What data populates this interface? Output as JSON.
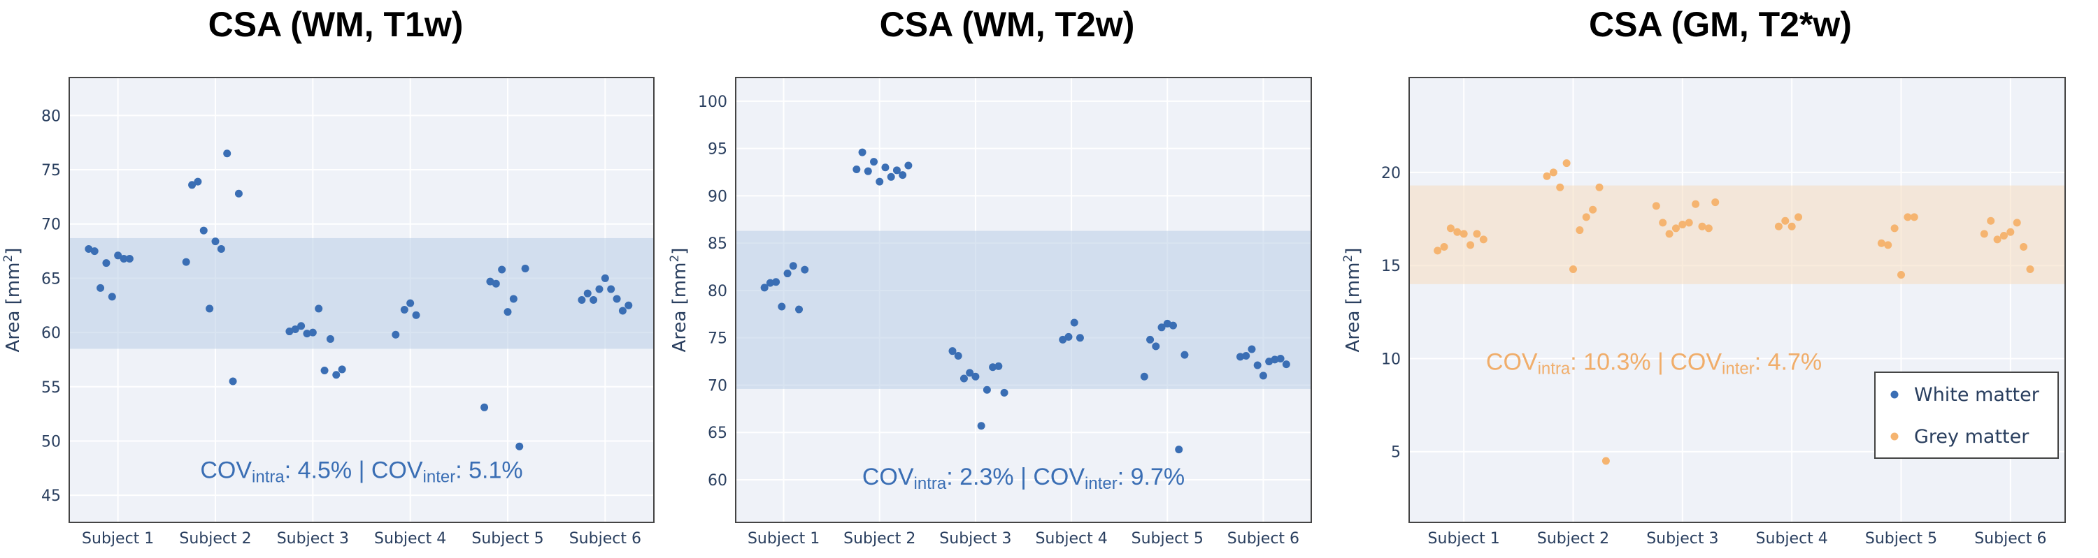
{
  "chart_data": [
    {
      "type": "scatter",
      "title": "CSA (WM, T1w)",
      "ylabel": "Area [mm²]",
      "categories": [
        "Subject 1",
        "Subject 2",
        "Subject 3",
        "Subject 4",
        "Subject 5",
        "Subject 6"
      ],
      "ylim": [
        42.5,
        83.5
      ],
      "yticks": [
        45,
        50,
        55,
        60,
        65,
        70,
        75,
        80
      ],
      "band": [
        58.5,
        68.7
      ],
      "color": "#3a6eb4",
      "band_color": "#b9cde6",
      "cov_parts": [
        "COV",
        "intra",
        ": 4.5%",
        "|",
        "COV",
        "inter",
        ": 5.1%"
      ],
      "series": [
        {
          "name": "White matter",
          "points": [
            [
              -0.3,
              67.7
            ],
            [
              -0.24,
              67.5
            ],
            [
              -0.18,
              64.1
            ],
            [
              -0.12,
              66.4
            ],
            [
              -0.06,
              63.3
            ],
            [
              0.0,
              67.1
            ],
            [
              0.06,
              66.8
            ],
            [
              0.12,
              66.8
            ],
            [
              -0.3,
              66.5
            ],
            [
              -0.24,
              73.6
            ],
            [
              -0.18,
              73.9
            ],
            [
              -0.12,
              69.4
            ],
            [
              -0.06,
              62.2
            ],
            [
              0.0,
              68.4
            ],
            [
              0.06,
              67.7
            ],
            [
              0.12,
              76.5
            ],
            [
              0.18,
              55.5
            ],
            [
              0.24,
              72.8
            ],
            [
              -0.24,
              60.1
            ],
            [
              -0.18,
              60.3
            ],
            [
              -0.12,
              60.6
            ],
            [
              -0.06,
              59.9
            ],
            [
              0.0,
              60.0
            ],
            [
              0.06,
              62.2
            ],
            [
              0.12,
              56.5
            ],
            [
              0.18,
              59.4
            ],
            [
              0.24,
              56.1
            ],
            [
              0.3,
              56.6
            ],
            [
              -0.15,
              59.8
            ],
            [
              -0.06,
              62.1
            ],
            [
              0.0,
              62.7
            ],
            [
              0.06,
              61.6
            ],
            [
              -0.24,
              53.1
            ],
            [
              -0.18,
              64.7
            ],
            [
              -0.12,
              64.5
            ],
            [
              -0.06,
              65.8
            ],
            [
              0.0,
              61.9
            ],
            [
              0.06,
              63.1
            ],
            [
              0.12,
              49.5
            ],
            [
              0.18,
              65.9
            ],
            [
              -0.24,
              63.0
            ],
            [
              -0.18,
              63.6
            ],
            [
              -0.12,
              63.0
            ],
            [
              -0.06,
              64.0
            ],
            [
              0.0,
              65.0
            ],
            [
              0.06,
              64.0
            ],
            [
              0.12,
              63.1
            ],
            [
              0.18,
              62.0
            ],
            [
              0.24,
              62.5
            ]
          ]
        }
      ]
    },
    {
      "type": "scatter",
      "title": "CSA (WM, T2w)",
      "ylabel": "Area [mm²]",
      "categories": [
        "Subject 1",
        "Subject 2",
        "Subject 3",
        "Subject 4",
        "Subject 5",
        "Subject 6"
      ],
      "ylim": [
        55.5,
        102.5
      ],
      "yticks": [
        60,
        65,
        70,
        75,
        80,
        85,
        90,
        95,
        100
      ],
      "band": [
        69.6,
        86.3
      ],
      "color": "#3a6eb4",
      "band_color": "#b9cde6",
      "cov_parts": [
        "COV",
        "intra",
        ": 2.3%",
        "|",
        "COV",
        "inter",
        ": 9.7%"
      ],
      "series": [
        {
          "name": "White matter",
          "points": [
            [
              -0.2,
              80.3
            ],
            [
              -0.14,
              80.8
            ],
            [
              -0.08,
              80.9
            ],
            [
              -0.02,
              78.3
            ],
            [
              0.04,
              81.8
            ],
            [
              0.1,
              82.6
            ],
            [
              0.16,
              78.0
            ],
            [
              0.22,
              82.2
            ],
            [
              -0.24,
              92.8
            ],
            [
              -0.18,
              94.6
            ],
            [
              -0.12,
              92.6
            ],
            [
              -0.06,
              93.6
            ],
            [
              0.0,
              91.5
            ],
            [
              0.06,
              93.0
            ],
            [
              0.12,
              92.0
            ],
            [
              0.18,
              92.7
            ],
            [
              0.24,
              92.2
            ],
            [
              0.3,
              93.2
            ],
            [
              -0.24,
              73.6
            ],
            [
              -0.18,
              73.1
            ],
            [
              -0.12,
              70.7
            ],
            [
              -0.06,
              71.3
            ],
            [
              0.0,
              70.9
            ],
            [
              0.06,
              65.7
            ],
            [
              0.12,
              69.5
            ],
            [
              0.18,
              71.9
            ],
            [
              0.24,
              72.0
            ],
            [
              0.3,
              69.2
            ],
            [
              -0.09,
              74.8
            ],
            [
              -0.03,
              75.1
            ],
            [
              0.03,
              76.6
            ],
            [
              0.09,
              75.0
            ],
            [
              -0.24,
              70.9
            ],
            [
              -0.18,
              74.8
            ],
            [
              -0.12,
              74.1
            ],
            [
              -0.06,
              76.1
            ],
            [
              0.0,
              76.5
            ],
            [
              0.06,
              76.3
            ],
            [
              0.12,
              63.2
            ],
            [
              0.18,
              73.2
            ],
            [
              -0.24,
              73.0
            ],
            [
              -0.18,
              73.1
            ],
            [
              -0.12,
              73.8
            ],
            [
              -0.06,
              72.1
            ],
            [
              0.0,
              71.0
            ],
            [
              0.06,
              72.5
            ],
            [
              0.12,
              72.7
            ],
            [
              0.18,
              72.8
            ],
            [
              0.24,
              72.2
            ]
          ]
        }
      ]
    },
    {
      "type": "scatter",
      "title": "CSA (GM, T2*w)",
      "ylabel": "Area [mm²]",
      "categories": [
        "Subject 1",
        "Subject 2",
        "Subject 3",
        "Subject 4",
        "Subject 5",
        "Subject 6"
      ],
      "ylim": [
        1.2,
        25.1
      ],
      "yticks": [
        5,
        10,
        15,
        20
      ],
      "band": [
        14.0,
        19.3
      ],
      "color": "#f5b470",
      "band_color": "#f5dcbf",
      "cov_parts": [
        "COV",
        "intra",
        ": 10.3%",
        "|",
        "COV",
        "inter",
        ": 4.7%"
      ],
      "legend": [
        {
          "label": "White matter",
          "color": "#3a6eb4"
        },
        {
          "label": "Grey matter",
          "color": "#f5b470"
        }
      ],
      "series": [
        {
          "name": "Grey matter",
          "points": [
            [
              -0.24,
              15.8
            ],
            [
              -0.18,
              16.0
            ],
            [
              -0.12,
              17.0
            ],
            [
              -0.06,
              16.8
            ],
            [
              0.0,
              16.7
            ],
            [
              0.06,
              16.1
            ],
            [
              0.12,
              16.7
            ],
            [
              0.18,
              16.4
            ],
            [
              -0.24,
              19.8
            ],
            [
              -0.18,
              20.0
            ],
            [
              -0.12,
              19.2
            ],
            [
              -0.06,
              20.5
            ],
            [
              0.0,
              14.8
            ],
            [
              0.06,
              16.9
            ],
            [
              0.12,
              17.6
            ],
            [
              0.18,
              18.0
            ],
            [
              0.24,
              19.2
            ],
            [
              0.3,
              4.5
            ],
            [
              -0.24,
              18.2
            ],
            [
              -0.18,
              17.3
            ],
            [
              -0.12,
              16.7
            ],
            [
              -0.06,
              17.0
            ],
            [
              0.0,
              17.2
            ],
            [
              0.06,
              17.3
            ],
            [
              0.12,
              18.3
            ],
            [
              0.18,
              17.1
            ],
            [
              0.24,
              17.0
            ],
            [
              0.3,
              18.4
            ],
            [
              -0.12,
              17.1
            ],
            [
              -0.06,
              17.4
            ],
            [
              0.0,
              17.1
            ],
            [
              0.06,
              17.6
            ],
            [
              -0.18,
              16.2
            ],
            [
              -0.12,
              16.1
            ],
            [
              -0.06,
              17.0
            ],
            [
              0.0,
              14.5
            ],
            [
              0.06,
              17.6
            ],
            [
              0.12,
              17.6
            ],
            [
              -0.24,
              16.7
            ],
            [
              -0.18,
              17.4
            ],
            [
              -0.12,
              16.4
            ],
            [
              -0.06,
              16.6
            ],
            [
              0.0,
              16.8
            ],
            [
              0.06,
              17.3
            ],
            [
              0.12,
              16.0
            ],
            [
              0.18,
              14.8
            ]
          ]
        }
      ]
    }
  ]
}
